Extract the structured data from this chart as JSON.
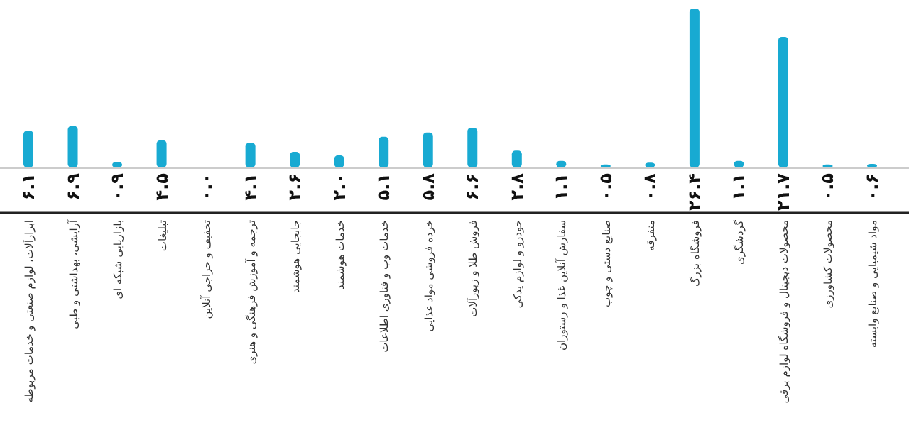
{
  "chart_data": {
    "type": "bar",
    "color": "#18aad2",
    "categories": [
      "ابزارآلات، لوازم صنعتی و خدمات مربوطه",
      "آرایشی، بهداشتی و طبی",
      "بازاریابی شبکه ای",
      "تبلیغات",
      "تخفیف و حراجی آنلاین",
      "ترجمه و آموزش فرهنگی و هنری",
      "جابجایی هوشمند",
      "خدمات هوشمند",
      "خدمات وب و فناوری اطلاعات",
      "خرده فروشی مواد غذایی",
      "فروش طلا و زیورآلات",
      "خودرو و لوازم یدکی",
      "سفارش آنلاین غذا و رستوران",
      "صنایع دستی و چوب",
      "متفرقه",
      "فروشگاه بزرگ",
      "گردشگری",
      "محصولات دیجیتال و فروشگاه لوازم برقی",
      "محصولات کشاورزی",
      "مواد شیمیایی و صنایع وابسته"
    ],
    "values": [
      6.1,
      6.9,
      0.9,
      4.5,
      0.0,
      4.1,
      2.6,
      2.0,
      5.1,
      5.8,
      6.6,
      2.8,
      1.1,
      0.5,
      0.8,
      26.4,
      1.1,
      21.7,
      0.5,
      0.6
    ],
    "value_labels": [
      "۶.۱",
      "۶.۹",
      "۰.۹",
      "۴.۵",
      "۰.۰",
      "۴.۱",
      "۲.۶",
      "۲.۰",
      "۵.۱",
      "۵.۸",
      "۶.۶",
      "۲.۸",
      "۱.۱",
      "۰.۵",
      "۰.۸",
      "۲۶.۴",
      "۱.۱",
      "۲۱.۷",
      "۰.۵",
      "۰.۶"
    ],
    "tick_labels": "x"
  }
}
